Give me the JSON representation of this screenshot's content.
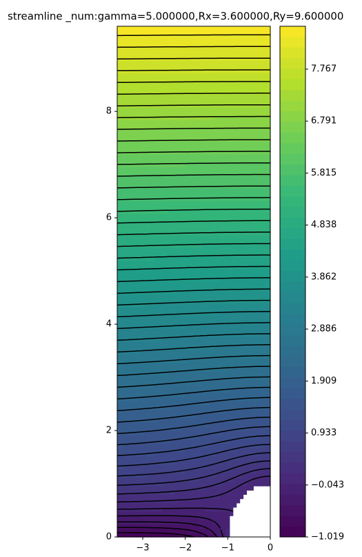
{
  "chart_data": {
    "type": "contour",
    "title": "streamline _num:gamma=5.000000,Rx=3.600000,Ry=9.600000",
    "xlim": [
      -3.6,
      0
    ],
    "ylim": [
      0,
      9.6
    ],
    "xticks": [
      {
        "value": -3,
        "label": "−3"
      },
      {
        "value": -2,
        "label": "−2"
      },
      {
        "value": -1,
        "label": "−1"
      },
      0
    ],
    "yticks": [
      0,
      2,
      4,
      6,
      8
    ],
    "colorbar": {
      "lim": [
        -1.019,
        8.572
      ],
      "ticks": [
        {
          "value": -1.019,
          "label": "−1.019"
        },
        {
          "value": -0.043,
          "label": "−0.043"
        },
        0.933,
        1.909,
        2.886,
        3.862,
        4.838,
        5.815,
        6.791,
        7.767
      ]
    }
  }
}
